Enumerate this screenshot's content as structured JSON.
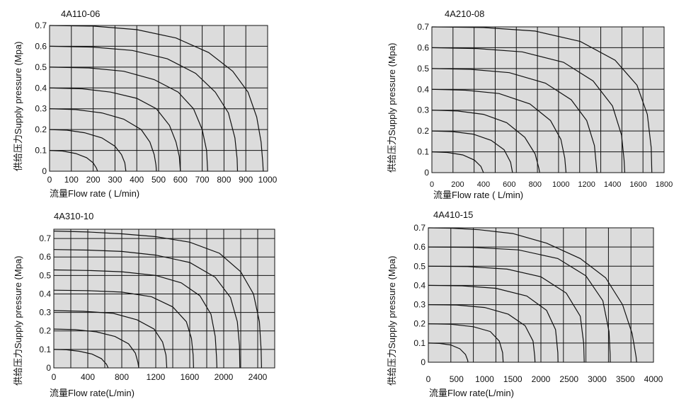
{
  "chart_data": [
    {
      "type": "line",
      "title": "4A110-06",
      "xlabel": "流量Flow rate ( L/min)",
      "ylabel": "供给压力Supply pressure   (Mpa)",
      "x_ticks": [
        0,
        100,
        200,
        300,
        400,
        500,
        600,
        700,
        800,
        900,
        1000
      ],
      "y_ticks": [
        0,
        0.1,
        0.2,
        0.3,
        0.4,
        0.5,
        0.6,
        0.7
      ],
      "xlim": [
        0,
        1000
      ],
      "ylim": [
        0,
        0.7
      ],
      "grid": true,
      "series": [
        {
          "values": [
            [
              0,
              0.1
            ],
            [
              60,
              0.097
            ],
            [
              120,
              0.085
            ],
            [
              170,
              0.065
            ],
            [
              200,
              0.04
            ],
            [
              215,
              0.015
            ],
            [
              220,
              0
            ]
          ]
        },
        {
          "values": [
            [
              0,
              0.2
            ],
            [
              80,
              0.197
            ],
            [
              160,
              0.185
            ],
            [
              240,
              0.16
            ],
            [
              300,
              0.12
            ],
            [
              330,
              0.08
            ],
            [
              345,
              0.04
            ],
            [
              350,
              0
            ]
          ]
        },
        {
          "values": [
            [
              0,
              0.3
            ],
            [
              120,
              0.296
            ],
            [
              240,
              0.28
            ],
            [
              340,
              0.25
            ],
            [
              420,
              0.2
            ],
            [
              460,
              0.14
            ],
            [
              480,
              0.08
            ],
            [
              488,
              0.03
            ],
            [
              490,
              0
            ]
          ]
        },
        {
          "values": [
            [
              0,
              0.4
            ],
            [
              150,
              0.396
            ],
            [
              280,
              0.38
            ],
            [
              400,
              0.35
            ],
            [
              490,
              0.3
            ],
            [
              550,
              0.22
            ],
            [
              580,
              0.14
            ],
            [
              595,
              0.07
            ],
            [
              600,
              0
            ]
          ]
        },
        {
          "values": [
            [
              0,
              0.5
            ],
            [
              180,
              0.496
            ],
            [
              340,
              0.48
            ],
            [
              480,
              0.44
            ],
            [
              590,
              0.38
            ],
            [
              660,
              0.3
            ],
            [
              700,
              0.2
            ],
            [
              720,
              0.1
            ],
            [
              725,
              0
            ]
          ]
        },
        {
          "values": [
            [
              0,
              0.6
            ],
            [
              200,
              0.596
            ],
            [
              380,
              0.58
            ],
            [
              540,
              0.54
            ],
            [
              670,
              0.47
            ],
            [
              760,
              0.38
            ],
            [
              820,
              0.28
            ],
            [
              850,
              0.16
            ],
            [
              860,
              0.06
            ],
            [
              862,
              0
            ]
          ]
        },
        {
          "values": [
            [
              0,
              0.7
            ],
            [
              200,
              0.697
            ],
            [
              400,
              0.68
            ],
            [
              580,
              0.64
            ],
            [
              730,
              0.57
            ],
            [
              840,
              0.48
            ],
            [
              910,
              0.38
            ],
            [
              950,
              0.26
            ],
            [
              970,
              0.14
            ],
            [
              978,
              0.04
            ],
            [
              980,
              0
            ]
          ]
        }
      ]
    },
    {
      "type": "line",
      "title": "4A210-08",
      "xlabel": "流量Flow rate ( L/min)",
      "ylabel": "供给压力Supply pressure   (Mpa)",
      "x_ticks": [
        0,
        200,
        400,
        600,
        800,
        1000,
        1200,
        1400,
        1600,
        1800
      ],
      "y_ticks": [
        0,
        0.1,
        0.2,
        0.3,
        0.4,
        0.5,
        0.6,
        0.7
      ],
      "xlim": [
        0,
        1800
      ],
      "ylim": [
        0,
        0.7
      ],
      "grid": true,
      "series": [
        {
          "values": [
            [
              0,
              0.1
            ],
            [
              120,
              0.097
            ],
            [
              240,
              0.085
            ],
            [
              330,
              0.06
            ],
            [
              380,
              0.03
            ],
            [
              400,
              0
            ]
          ]
        },
        {
          "values": [
            [
              0,
              0.2
            ],
            [
              160,
              0.197
            ],
            [
              320,
              0.185
            ],
            [
              460,
              0.155
            ],
            [
              560,
              0.11
            ],
            [
              610,
              0.05
            ],
            [
              625,
              0
            ]
          ]
        },
        {
          "values": [
            [
              0,
              0.3
            ],
            [
              200,
              0.296
            ],
            [
              400,
              0.28
            ],
            [
              580,
              0.24
            ],
            [
              720,
              0.17
            ],
            [
              800,
              0.09
            ],
            [
              830,
              0.02
            ],
            [
              835,
              0
            ]
          ]
        },
        {
          "values": [
            [
              0,
              0.4
            ],
            [
              260,
              0.396
            ],
            [
              520,
              0.38
            ],
            [
              760,
              0.33
            ],
            [
              920,
              0.25
            ],
            [
              1000,
              0.16
            ],
            [
              1030,
              0.07
            ],
            [
              1040,
              0
            ]
          ]
        },
        {
          "values": [
            [
              0,
              0.5
            ],
            [
              300,
              0.496
            ],
            [
              600,
              0.48
            ],
            [
              880,
              0.43
            ],
            [
              1080,
              0.35
            ],
            [
              1200,
              0.25
            ],
            [
              1260,
              0.13
            ],
            [
              1280,
              0
            ]
          ]
        },
        {
          "values": [
            [
              0,
              0.6
            ],
            [
              350,
              0.596
            ],
            [
              700,
              0.58
            ],
            [
              1020,
              0.53
            ],
            [
              1250,
              0.44
            ],
            [
              1400,
              0.32
            ],
            [
              1470,
              0.18
            ],
            [
              1490,
              0.06
            ],
            [
              1495,
              0
            ]
          ]
        },
        {
          "values": [
            [
              0,
              0.7
            ],
            [
              400,
              0.697
            ],
            [
              800,
              0.68
            ],
            [
              1150,
              0.63
            ],
            [
              1420,
              0.54
            ],
            [
              1590,
              0.42
            ],
            [
              1670,
              0.28
            ],
            [
              1700,
              0.12
            ],
            [
              1705,
              0
            ]
          ]
        }
      ]
    },
    {
      "type": "line",
      "title": "4A310-10",
      "xlabel": "流量Flow rate(L/min)",
      "ylabel": "供给压力Supply pressure   (Mpa)",
      "x_ticks": [
        0,
        400,
        800,
        1200,
        1600,
        2000,
        2400
      ],
      "y_ticks": [
        0,
        0.1,
        0.2,
        0.3,
        0.4,
        0.5,
        0.6,
        0.7
      ],
      "xlim": [
        0,
        2600
      ],
      "ylim": [
        0,
        0.75
      ],
      "grid": true,
      "series": [
        {
          "values": [
            [
              0,
              0.1
            ],
            [
              150,
              0.098
            ],
            [
              300,
              0.09
            ],
            [
              450,
              0.075
            ],
            [
              560,
              0.05
            ],
            [
              620,
              0.02
            ],
            [
              640,
              0
            ]
          ]
        },
        {
          "values": [
            [
              0,
              0.21
            ],
            [
              250,
              0.207
            ],
            [
              500,
              0.195
            ],
            [
              720,
              0.17
            ],
            [
              880,
              0.13
            ],
            [
              960,
              0.08
            ],
            [
              990,
              0.03
            ],
            [
              1000,
              0
            ]
          ]
        },
        {
          "values": [
            [
              0,
              0.31
            ],
            [
              350,
              0.306
            ],
            [
              700,
              0.295
            ],
            [
              980,
              0.26
            ],
            [
              1180,
              0.21
            ],
            [
              1280,
              0.14
            ],
            [
              1320,
              0.07
            ],
            [
              1330,
              0
            ]
          ]
        },
        {
          "values": [
            [
              0,
              0.42
            ],
            [
              400,
              0.418
            ],
            [
              800,
              0.41
            ],
            [
              1150,
              0.385
            ],
            [
              1400,
              0.33
            ],
            [
              1560,
              0.25
            ],
            [
              1620,
              0.16
            ],
            [
              1640,
              0.07
            ],
            [
              1645,
              0
            ]
          ]
        },
        {
          "values": [
            [
              0,
              0.53
            ],
            [
              400,
              0.527
            ],
            [
              800,
              0.52
            ],
            [
              1200,
              0.5
            ],
            [
              1500,
              0.46
            ],
            [
              1720,
              0.39
            ],
            [
              1850,
              0.29
            ],
            [
              1900,
              0.17
            ],
            [
              1915,
              0.06
            ],
            [
              1920,
              0
            ]
          ]
        },
        {
          "values": [
            [
              0,
              0.64
            ],
            [
              400,
              0.637
            ],
            [
              800,
              0.63
            ],
            [
              1200,
              0.61
            ],
            [
              1600,
              0.57
            ],
            [
              1900,
              0.49
            ],
            [
              2080,
              0.38
            ],
            [
              2160,
              0.25
            ],
            [
              2185,
              0.12
            ],
            [
              2190,
              0
            ]
          ]
        },
        {
          "values": [
            [
              0,
              0.74
            ],
            [
              400,
              0.735
            ],
            [
              800,
              0.725
            ],
            [
              1200,
              0.71
            ],
            [
              1600,
              0.68
            ],
            [
              1950,
              0.62
            ],
            [
              2200,
              0.52
            ],
            [
              2350,
              0.4
            ],
            [
              2420,
              0.25
            ],
            [
              2440,
              0.1
            ],
            [
              2445,
              0
            ]
          ]
        }
      ]
    },
    {
      "type": "line",
      "title": "4A410-15",
      "xlabel": "流量Flow rate(L/min)",
      "ylabel": "供给压力Supply pressure   (Mpa)",
      "x_ticks": [
        0,
        500,
        1000,
        1500,
        2000,
        2500,
        3000,
        3500,
        4000
      ],
      "y_ticks": [
        0,
        0.1,
        0.2,
        0.3,
        0.4,
        0.5,
        0.6,
        0.7
      ],
      "xlim": [
        0,
        4000
      ],
      "ylim": [
        0,
        0.7
      ],
      "grid": true,
      "series": [
        {
          "values": [
            [
              0,
              0.1
            ],
            [
              200,
              0.098
            ],
            [
              400,
              0.09
            ],
            [
              560,
              0.07
            ],
            [
              660,
              0.04
            ],
            [
              700,
              0.01
            ],
            [
              705,
              0
            ]
          ]
        },
        {
          "values": [
            [
              0,
              0.2
            ],
            [
              400,
              0.198
            ],
            [
              800,
              0.185
            ],
            [
              1100,
              0.16
            ],
            [
              1260,
              0.11
            ],
            [
              1320,
              0.05
            ],
            [
              1330,
              0
            ]
          ]
        },
        {
          "values": [
            [
              0,
              0.3
            ],
            [
              500,
              0.298
            ],
            [
              1000,
              0.285
            ],
            [
              1420,
              0.25
            ],
            [
              1720,
              0.19
            ],
            [
              1860,
              0.11
            ],
            [
              1890,
              0.03
            ],
            [
              1895,
              0
            ]
          ]
        },
        {
          "values": [
            [
              0,
              0.4
            ],
            [
              600,
              0.398
            ],
            [
              1200,
              0.385
            ],
            [
              1750,
              0.345
            ],
            [
              2100,
              0.27
            ],
            [
              2260,
              0.17
            ],
            [
              2300,
              0.05
            ],
            [
              2305,
              0
            ]
          ]
        },
        {
          "values": [
            [
              0,
              0.5
            ],
            [
              700,
              0.498
            ],
            [
              1400,
              0.485
            ],
            [
              2000,
              0.445
            ],
            [
              2450,
              0.36
            ],
            [
              2700,
              0.24
            ],
            [
              2760,
              0.1
            ],
            [
              2770,
              0
            ]
          ]
        },
        {
          "values": [
            [
              0,
              0.6
            ],
            [
              800,
              0.598
            ],
            [
              1600,
              0.585
            ],
            [
              2300,
              0.54
            ],
            [
              2800,
              0.45
            ],
            [
              3100,
              0.32
            ],
            [
              3210,
              0.16
            ],
            [
              3230,
              0.04
            ],
            [
              3232,
              0
            ]
          ]
        },
        {
          "values": [
            [
              0,
              0.7
            ],
            [
              400,
              0.698
            ],
            [
              900,
              0.69
            ],
            [
              1500,
              0.67
            ],
            [
              2100,
              0.62
            ],
            [
              2700,
              0.54
            ],
            [
              3150,
              0.44
            ],
            [
              3450,
              0.3
            ],
            [
              3620,
              0.15
            ],
            [
              3690,
              0.03
            ],
            [
              3700,
              0
            ]
          ]
        }
      ]
    }
  ]
}
